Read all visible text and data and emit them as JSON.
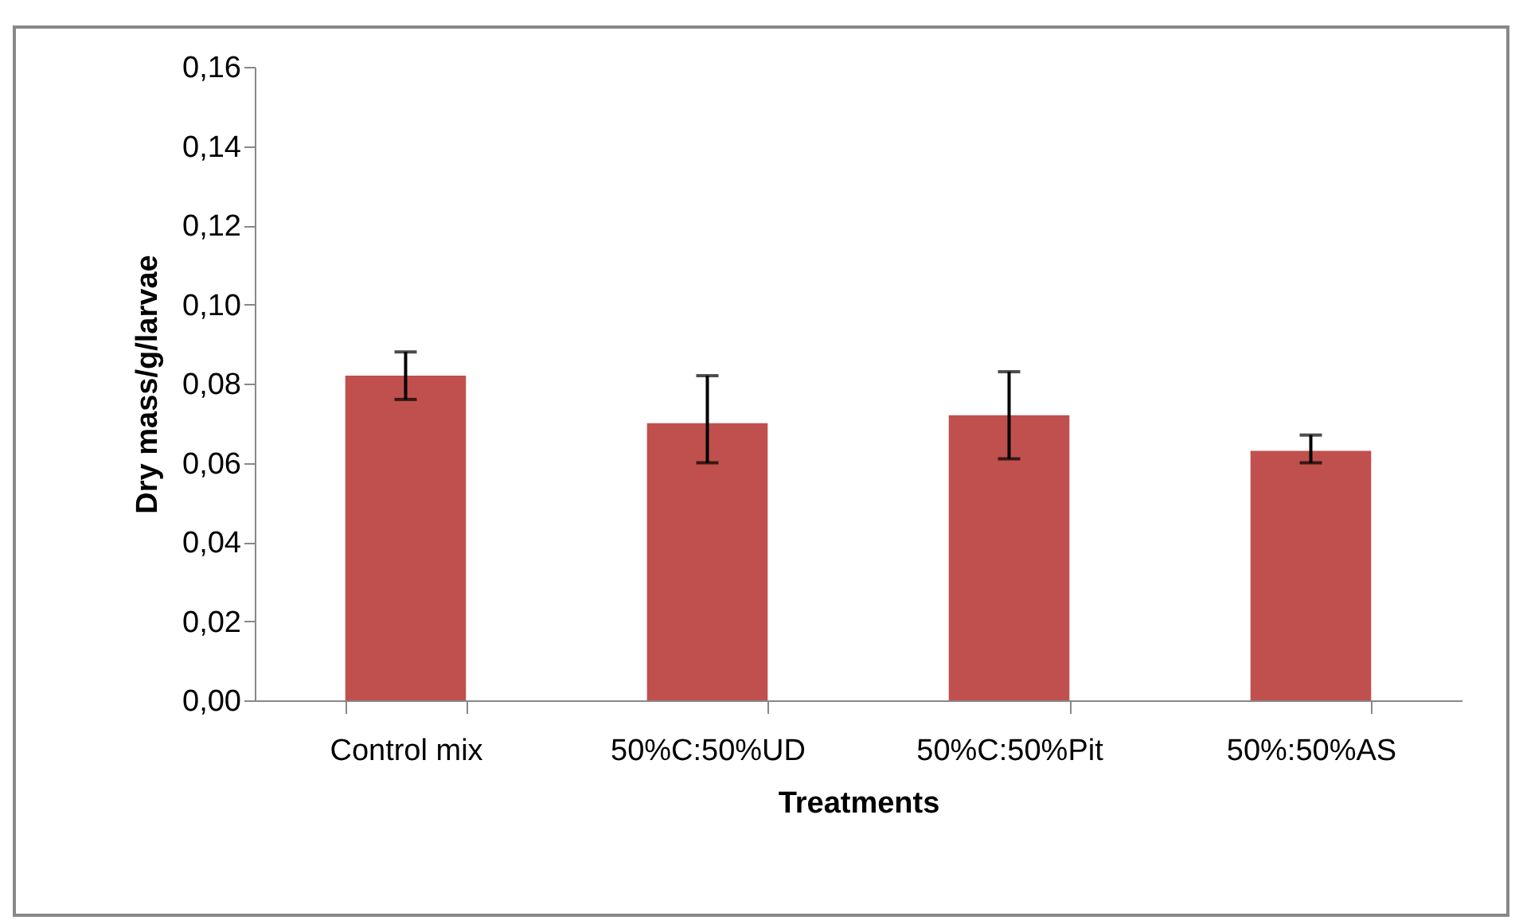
{
  "chart_data": {
    "type": "bar",
    "xlabel": "Treatments",
    "ylabel": "Dry mass/g/larvae",
    "categories": [
      "Control mix",
      "50%C:50%UD",
      "50%C:50%Pit",
      "50%:50%AS"
    ],
    "values": [
      0.082,
      0.07,
      0.072,
      0.063
    ],
    "errors": [
      [
        0.076,
        0.088
      ],
      [
        0.06,
        0.082
      ],
      [
        0.061,
        0.083
      ],
      [
        0.06,
        0.067
      ]
    ],
    "color": "#c0504d",
    "ylim": [
      0,
      0.16
    ],
    "yticks": [
      {
        "value": 0,
        "label": "0,00"
      },
      {
        "value": 0.02,
        "label": "0,02"
      },
      {
        "value": 0.04,
        "label": "0,04"
      },
      {
        "value": 0.06,
        "label": "0,06"
      },
      {
        "value": 0.08,
        "label": "0,08"
      },
      {
        "value": 0.1,
        "label": "0,10"
      },
      {
        "value": 0.12,
        "label": "0,12"
      },
      {
        "value": 0.14,
        "label": "0,14"
      },
      {
        "value": 0.16,
        "label": "0,16"
      }
    ],
    "grid": false
  }
}
